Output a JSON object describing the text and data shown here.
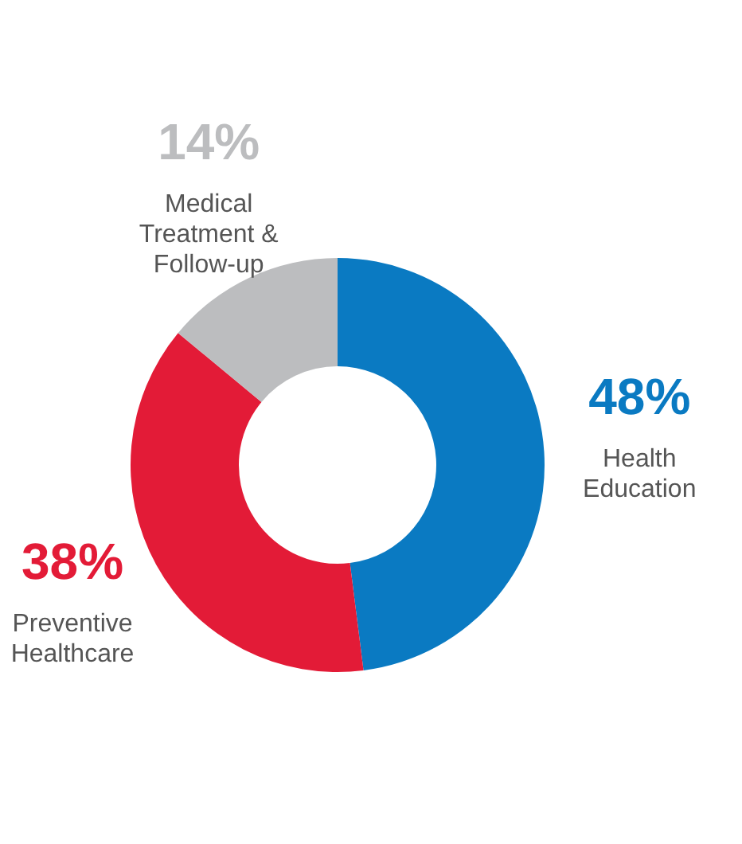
{
  "chart_data": {
    "type": "donut",
    "categories": [
      "Health Education",
      "Preventive Healthcare",
      "Medical Treatment & Follow-up"
    ],
    "values": [
      48,
      38,
      14
    ],
    "colors": [
      "#0a7ac2",
      "#e31b37",
      "#bcbdbf"
    ],
    "value_labels": [
      "48%",
      "38%",
      "14%"
    ]
  }
}
